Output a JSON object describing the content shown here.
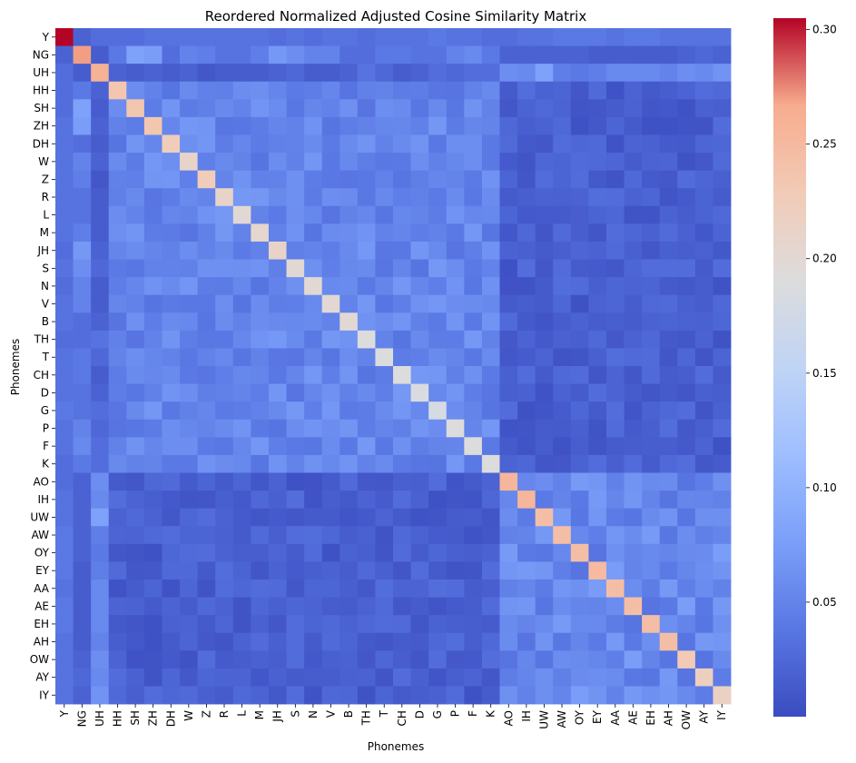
{
  "chart_data": {
    "type": "heatmap",
    "title": "Reordered Normalized Adjusted Cosine Similarity Matrix",
    "xlabel": "Phonemes",
    "ylabel": "Phonemes",
    "labels": [
      "Y",
      "NG",
      "UH",
      "HH",
      "SH",
      "ZH",
      "DH",
      "W",
      "Z",
      "R",
      "L",
      "M",
      "JH",
      "S",
      "N",
      "V",
      "B",
      "TH",
      "T",
      "CH",
      "D",
      "G",
      "P",
      "F",
      "K",
      "AO",
      "IH",
      "UW",
      "AW",
      "OY",
      "EY",
      "AA",
      "AE",
      "EH",
      "AH",
      "OW",
      "AY",
      "IY"
    ],
    "colormap": "coolwarm",
    "colorbar": {
      "vmin": 0.0,
      "vmax": 0.305,
      "ticks": [
        0.05,
        0.1,
        0.15,
        0.2,
        0.25,
        0.3
      ],
      "tick_labels": [
        "0.05",
        "0.10",
        "0.15",
        "0.20",
        "0.25",
        "0.30"
      ]
    },
    "diagonal": [
      0.305,
      0.27,
      0.26,
      0.235,
      0.235,
      0.235,
      0.225,
      0.21,
      0.225,
      0.21,
      0.2,
      0.205,
      0.21,
      0.2,
      0.2,
      0.2,
      0.2,
      0.19,
      0.19,
      0.19,
      0.185,
      0.18,
      0.19,
      0.19,
      0.19,
      0.255,
      0.255,
      0.245,
      0.245,
      0.245,
      0.25,
      0.245,
      0.245,
      0.245,
      0.245,
      0.23,
      0.22,
      0.215
    ],
    "row0_values": [
      0.305,
      0.02,
      0.03,
      0.03,
      0.03,
      0.035,
      0.035,
      0.035,
      0.035,
      0.035,
      0.035,
      0.035,
      0.03,
      0.035,
      0.03,
      0.035,
      0.035,
      0.03,
      0.035,
      0.035,
      0.035,
      0.04,
      0.035,
      0.035,
      0.03,
      0.03,
      0.035,
      0.035,
      0.04,
      0.04,
      0.04,
      0.035,
      0.04,
      0.04,
      0.035,
      0.035,
      0.035,
      0.035
    ],
    "row1_values": [
      0.02,
      0.27,
      0.015,
      0.04,
      0.08,
      0.075,
      0.03,
      0.05,
      0.045,
      0.035,
      0.035,
      0.045,
      0.07,
      0.06,
      0.05,
      0.05,
      0.03,
      0.03,
      0.04,
      0.04,
      0.035,
      0.035,
      0.05,
      0.055,
      0.04,
      0.02,
      0.02,
      0.02,
      0.02,
      0.02,
      0.015,
      0.015,
      0.015,
      0.015,
      0.015,
      0.02,
      0.025,
      0.02
    ],
    "row2_values": [
      0.025,
      0.015,
      0.26,
      0.02,
      0.015,
      0.02,
      0.015,
      0.02,
      0.01,
      0.015,
      0.015,
      0.015,
      0.02,
      0.025,
      0.015,
      0.015,
      0.02,
      0.035,
      0.025,
      0.015,
      0.02,
      0.03,
      0.025,
      0.03,
      0.03,
      0.06,
      0.055,
      0.08,
      0.045,
      0.04,
      0.045,
      0.055,
      0.055,
      0.055,
      0.05,
      0.06,
      0.055,
      0.065
    ],
    "consonant_block_offdiag_range": [
      0.035,
      0.07
    ],
    "vowel_block_offdiag_range": [
      0.035,
      0.075
    ],
    "cross_block_offdiag_range": [
      0.005,
      0.03
    ]
  }
}
